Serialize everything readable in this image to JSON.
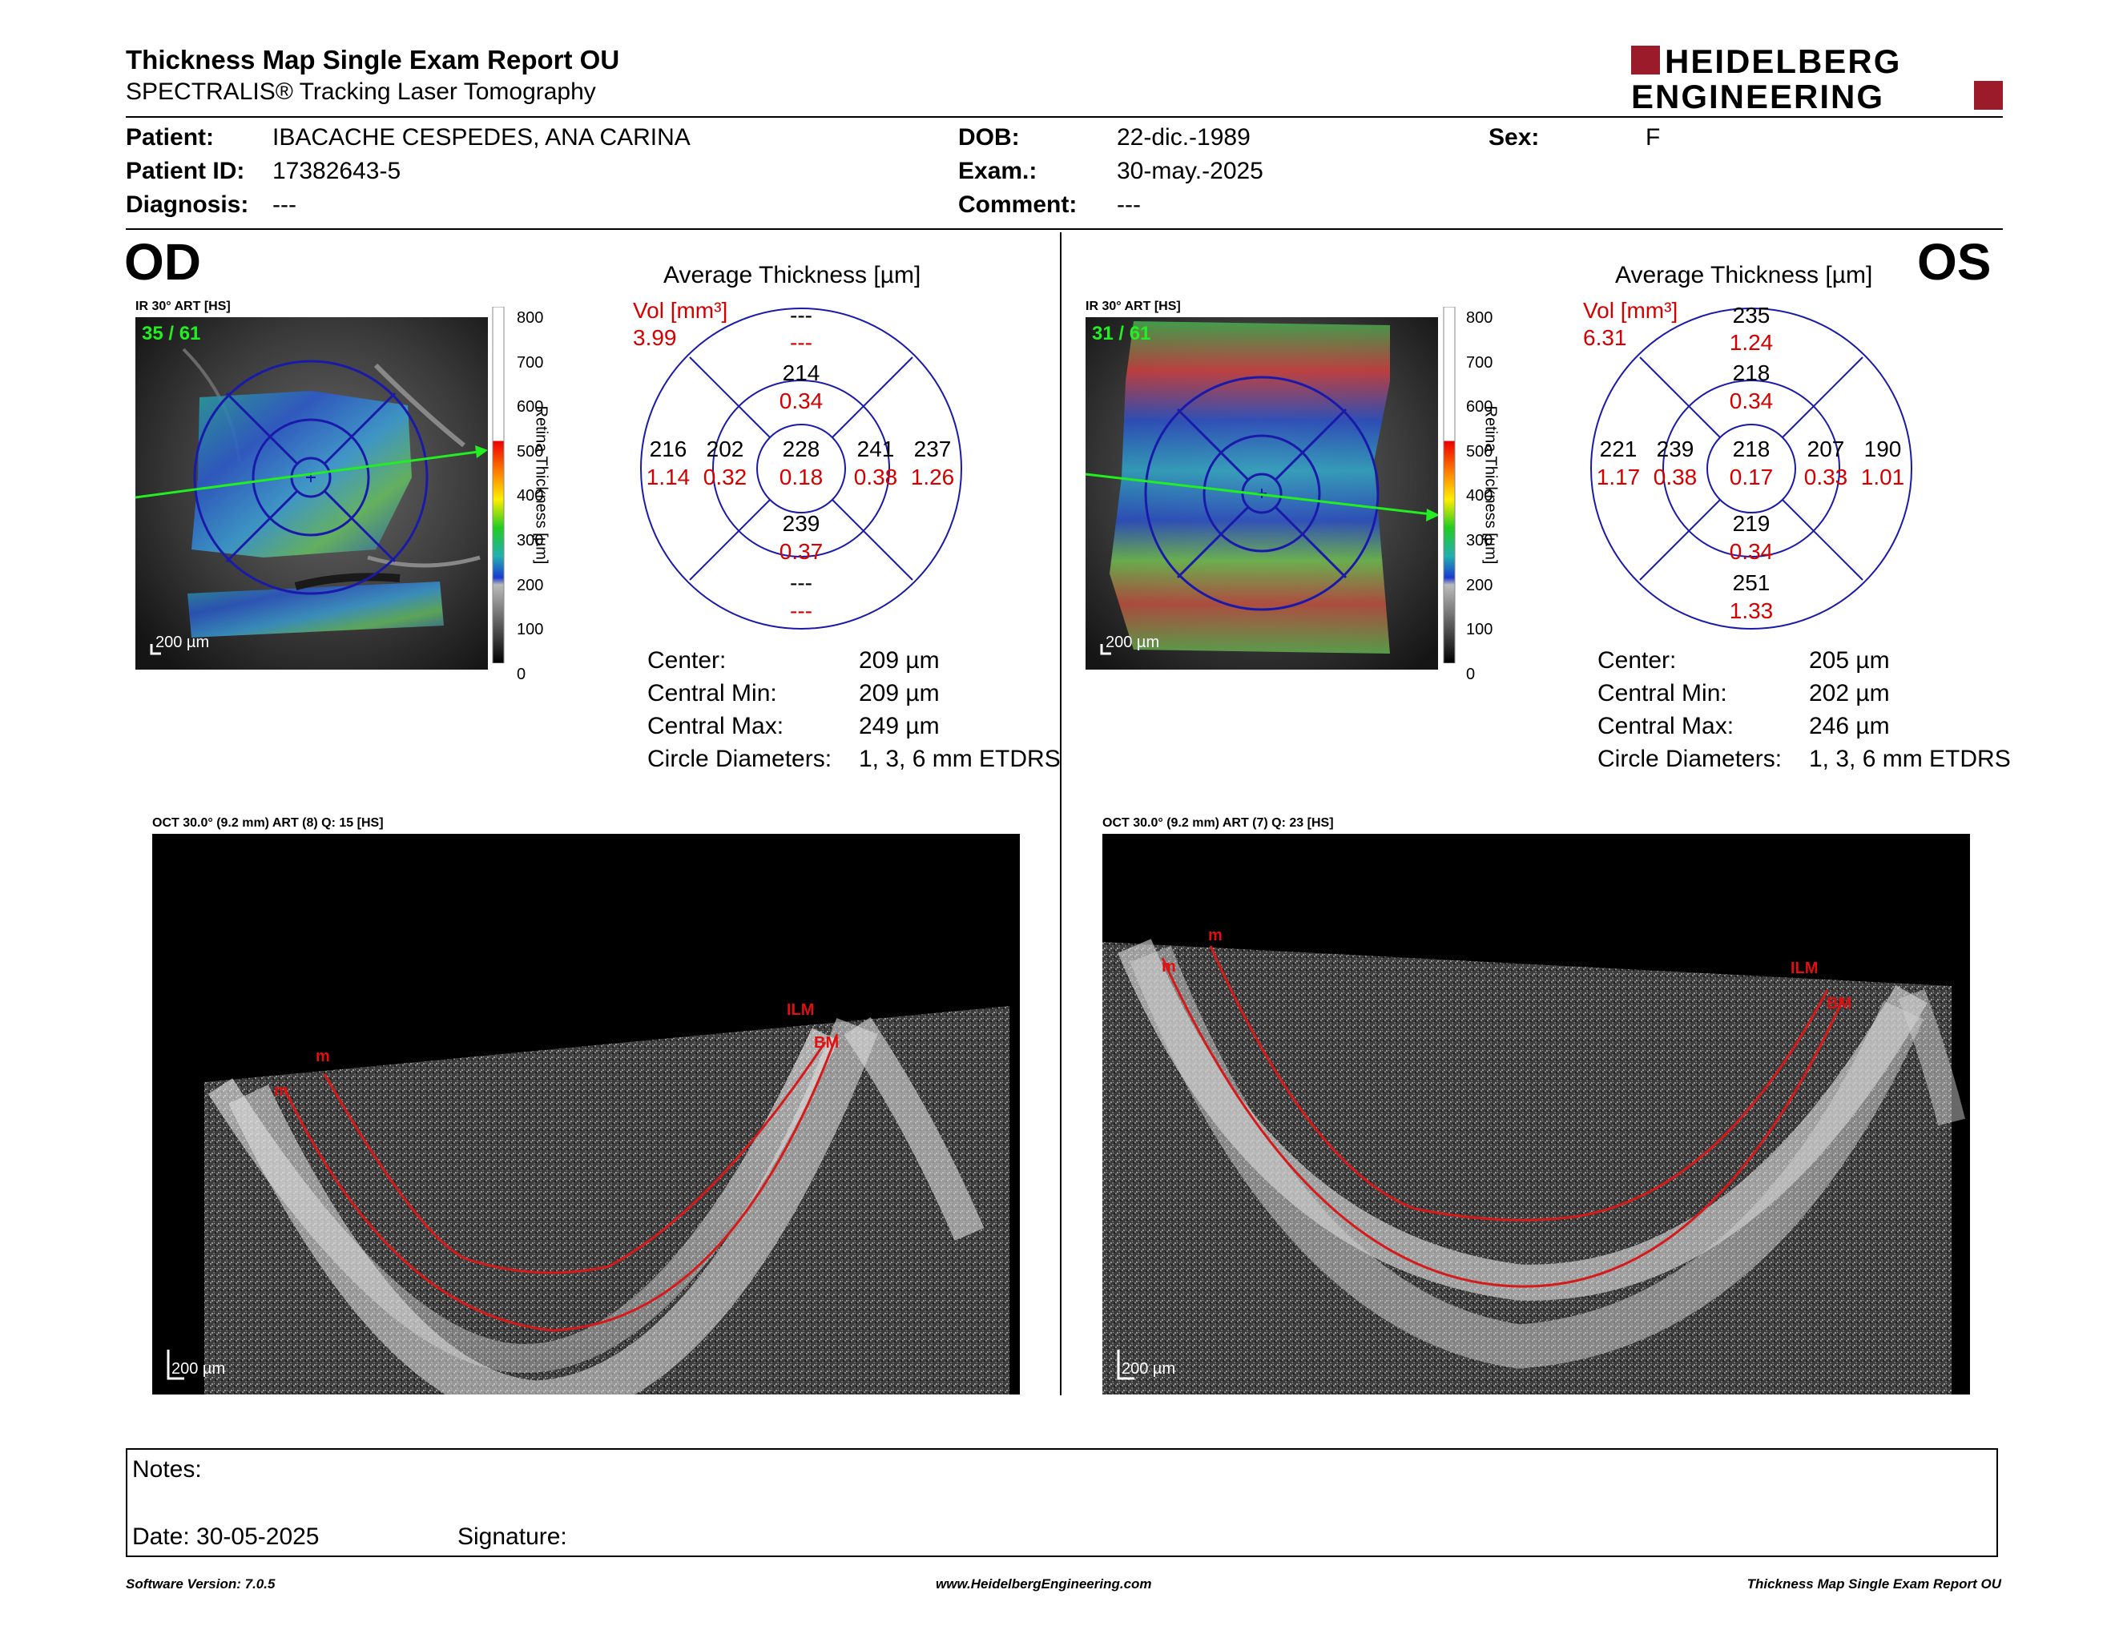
{
  "header": {
    "title": "Thickness Map Single Exam Report OU",
    "subtitle": "SPECTRALIS® Tracking Laser Tomography",
    "logo_line1": "HEIDELBERG",
    "logo_line2": "ENGINEERING"
  },
  "patient": {
    "patient_label": "Patient:",
    "patient_value": "IBACACHE CESPEDES, ANA CARINA",
    "id_label": "Patient ID:",
    "id_value": "17382643-5",
    "diagnosis_label": "Diagnosis:",
    "diagnosis_value": "---",
    "dob_label": "DOB:",
    "dob_value": "22-dic.-1989",
    "exam_label": "Exam.:",
    "exam_value": "30-may.-2025",
    "comment_label": "Comment:",
    "comment_value": "---",
    "sex_label": "Sex:",
    "sex_value": "F"
  },
  "od": {
    "eye_label": "OD",
    "ir_label": "IR 30° ART [HS]",
    "frame_counter": "35 / 61",
    "scale_label": "200 µm",
    "avg_title": "Average Thickness [µm]",
    "vol_label": "Vol [mm³]",
    "vol_total": "3.99",
    "center_thickness": "228",
    "center_vol": "0.18",
    "inner_top": "214",
    "inner_top_vol": "0.34",
    "inner_bottom": "239",
    "inner_bottom_vol": "0.37",
    "inner_left": "202",
    "inner_left_vol": "0.32",
    "inner_right": "241",
    "inner_right_vol": "0.38",
    "outer_top": "---",
    "outer_top_vol": "---",
    "outer_bottom": "---",
    "outer_bottom_vol": "---",
    "outer_left": "216",
    "outer_left_vol": "1.14",
    "outer_right": "237",
    "outer_right_vol": "1.26",
    "stats": {
      "center_label": "Center:",
      "center_value": "209 µm",
      "min_label": "Central Min:",
      "min_value": "209 µm",
      "max_label": "Central Max:",
      "max_value": "249 µm",
      "diam_label": "Circle Diameters:",
      "diam_value": "1, 3, 6 mm ETDRS"
    },
    "oct_label": "OCT 30.0° (9.2 mm) ART (8) Q: 15 [HS]",
    "oct_scale": "200 µm",
    "layer_ilm": "ILM",
    "layer_bm": "BM",
    "layer_m1": "m",
    "layer_m2": "m"
  },
  "os": {
    "eye_label": "OS",
    "ir_label": "IR 30° ART [HS]",
    "frame_counter": "31 / 61",
    "scale_label": "200 µm",
    "avg_title": "Average Thickness [µm]",
    "vol_label": "Vol [mm³]",
    "vol_total": "6.31",
    "center_thickness": "218",
    "center_vol": "0.17",
    "inner_top": "218",
    "inner_top_vol": "0.34",
    "inner_bottom": "219",
    "inner_bottom_vol": "0.34",
    "inner_left": "239",
    "inner_left_vol": "0.38",
    "inner_right": "207",
    "inner_right_vol": "0.33",
    "outer_top": "235",
    "outer_top_vol": "1.24",
    "outer_bottom": "251",
    "outer_bottom_vol": "1.33",
    "outer_left": "221",
    "outer_left_vol": "1.17",
    "outer_right": "190",
    "outer_right_vol": "1.01",
    "stats": {
      "center_label": "Center:",
      "center_value": "205 µm",
      "min_label": "Central Min:",
      "min_value": "202 µm",
      "max_label": "Central Max:",
      "max_value": "246 µm",
      "diam_label": "Circle Diameters:",
      "diam_value": "1, 3, 6 mm ETDRS"
    },
    "oct_label": "OCT 30.0° (9.2 mm) ART (7) Q: 23 [HS]",
    "oct_scale": "200 µm",
    "layer_ilm": "ILM",
    "layer_bm": "BM",
    "layer_m1": "m",
    "layer_m2": "m"
  },
  "colorbar": {
    "ticks": [
      "800",
      "700",
      "600",
      "500",
      "400",
      "300",
      "200",
      "100",
      "0"
    ],
    "title": "Retina Thickness [µm]"
  },
  "notes": {
    "notes_label": "Notes:",
    "date_label": "Date: 30-05-2025",
    "signature_label": "Signature:"
  },
  "footer": {
    "software": "Software Version: 7.0.5",
    "website": "www.HeidelbergEngineering.com",
    "report_name": "Thickness Map Single Exam Report OU"
  },
  "colors": {
    "accent_red": "#d40000",
    "logo_red": "#9b1b2a",
    "circle_blue": "#1a1aaa",
    "frame_green": "#22ee22"
  }
}
